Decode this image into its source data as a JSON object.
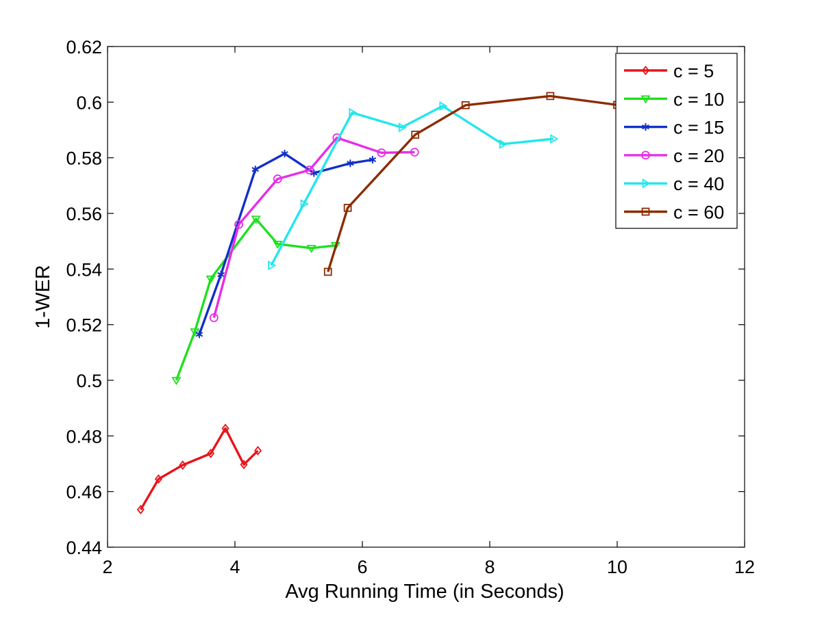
{
  "chart_data": {
    "type": "line",
    "xlabel": "Avg Running Time (in Seconds)",
    "ylabel": "1-WER",
    "xlim": [
      2,
      12
    ],
    "ylim": [
      0.44,
      0.62
    ],
    "xticks": [
      2,
      4,
      6,
      8,
      10,
      12
    ],
    "xtick_labels": [
      "2",
      "4",
      "6",
      "8",
      "10",
      "12"
    ],
    "yticks": [
      0.44,
      0.46,
      0.48,
      0.5,
      0.52,
      0.54,
      0.56,
      0.58,
      0.6,
      0.62
    ],
    "ytick_labels": [
      "0.44",
      "0.46",
      "0.48",
      "0.5",
      "0.52",
      "0.54",
      "0.56",
      "0.58",
      "0.6",
      "0.62"
    ],
    "grid": false,
    "legend_position": "top-right",
    "series": [
      {
        "name": "c = 5",
        "color": "#e8141b",
        "marker": "diamond",
        "x": [
          2.52,
          2.8,
          3.18,
          3.62,
          3.85,
          4.14,
          4.36
        ],
        "y": [
          0.4535,
          0.4645,
          0.4695,
          0.4737,
          0.4827,
          0.4697,
          0.4747
        ]
      },
      {
        "name": "c = 10",
        "color": "#1ee01e",
        "marker": "triangle-down",
        "x": [
          3.08,
          3.37,
          3.62,
          4.33,
          4.67,
          5.2,
          5.58
        ],
        "y": [
          0.5,
          0.5175,
          0.5365,
          0.558,
          0.549,
          0.5475,
          0.5485
        ]
      },
      {
        "name": "c = 15",
        "color": "#1330c8",
        "marker": "asterisk",
        "x": [
          3.44,
          3.78,
          4.32,
          4.78,
          5.24,
          5.81,
          6.16
        ],
        "y": [
          0.5165,
          0.538,
          0.5758,
          0.5815,
          0.5745,
          0.578,
          0.5793
        ]
      },
      {
        "name": "c = 20",
        "color": "#e62ee6",
        "marker": "circle",
        "x": [
          3.67,
          4.06,
          4.67,
          5.17,
          5.6,
          6.3,
          6.82
        ],
        "y": [
          0.5225,
          0.556,
          0.5724,
          0.5756,
          0.5872,
          0.5818,
          0.582
        ]
      },
      {
        "name": "c = 40",
        "color": "#22e6ec",
        "marker": "triangle-right",
        "x": [
          4.57,
          5.08,
          5.84,
          6.62,
          7.26,
          8.2,
          9.0
        ],
        "y": [
          0.5413,
          0.5634,
          0.5962,
          0.5909,
          0.5986,
          0.5849,
          0.5868
        ]
      },
      {
        "name": "c = 60",
        "color": "#8b2c00",
        "marker": "square",
        "x": [
          5.46,
          5.77,
          6.83,
          7.62,
          8.95,
          10.0
        ],
        "y": [
          0.539,
          0.562,
          0.5883,
          0.5989,
          0.6022,
          0.599
        ]
      }
    ]
  }
}
